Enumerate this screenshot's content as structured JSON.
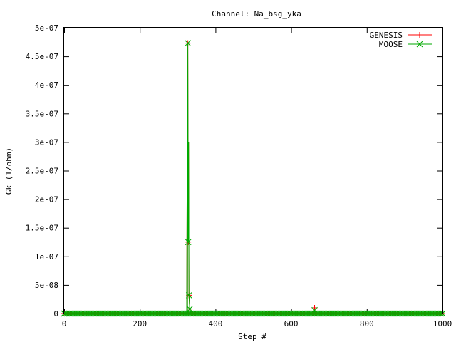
{
  "chart_data": {
    "type": "line",
    "title": "Channel: Na_bsg_yka",
    "xlabel": "Step #",
    "ylabel": "Gk (1/ohm)",
    "xlim": [
      0,
      1000
    ],
    "ylim": [
      0,
      5e-07
    ],
    "x_ticks": [
      0,
      200,
      400,
      600,
      800,
      1000
    ],
    "x_tick_labels": [
      "0",
      "200",
      "400",
      "600",
      "800",
      "1000"
    ],
    "y_ticks": [
      0,
      5e-08,
      1e-07,
      1.5e-07,
      2e-07,
      2.5e-07,
      3e-07,
      3.5e-07,
      4e-07,
      4.5e-07,
      5e-07
    ],
    "y_tick_labels": [
      "0",
      "5e-08",
      "1e-07",
      "1.5e-07",
      "2e-07",
      "2.5e-07",
      "3e-07",
      "3.5e-07",
      "4e-07",
      "4.5e-07",
      "5e-07"
    ],
    "grid": false,
    "legend_position": "top-right",
    "series": [
      {
        "name": "GENESIS",
        "color": "#ff0000",
        "marker": "plus",
        "points": [
          [
            0,
            0
          ],
          [
            300,
            0
          ],
          [
            324,
            0
          ],
          [
            325,
            2.35e-07
          ],
          [
            326,
            0
          ],
          [
            327,
            4.73e-07
          ],
          [
            328,
            1.25e-07
          ],
          [
            329,
            3e-07
          ],
          [
            330,
            3.2e-08
          ],
          [
            332,
            8e-09
          ],
          [
            334,
            0
          ],
          [
            400,
            0
          ],
          [
            660,
            0
          ],
          [
            662,
            1e-08
          ],
          [
            664,
            0
          ],
          [
            1000,
            0
          ]
        ],
        "marker_points": [
          [
            0,
            0
          ],
          [
            327,
            4.73e-07
          ],
          [
            328,
            1.25e-07
          ],
          [
            330,
            3.2e-08
          ],
          [
            332,
            8e-09
          ],
          [
            662,
            1e-08
          ],
          [
            1000,
            0
          ]
        ]
      },
      {
        "name": "MOOSE",
        "color": "#00aa00",
        "marker": "x",
        "points": [
          [
            0,
            0
          ],
          [
            300,
            0
          ],
          [
            324,
            0
          ],
          [
            325,
            2.35e-07
          ],
          [
            326,
            0
          ],
          [
            327,
            4.73e-07
          ],
          [
            328,
            1.25e-07
          ],
          [
            329,
            3e-07
          ],
          [
            330,
            3.2e-08
          ],
          [
            332,
            8e-09
          ],
          [
            334,
            0
          ],
          [
            400,
            0
          ],
          [
            660,
            0
          ],
          [
            662,
            6e-09
          ],
          [
            664,
            0
          ],
          [
            1000,
            0
          ]
        ],
        "marker_points": [
          [
            0,
            0
          ],
          [
            327,
            4.73e-07
          ],
          [
            328,
            1.25e-07
          ],
          [
            330,
            3.2e-08
          ],
          [
            332,
            8e-09
          ],
          [
            662,
            6e-09
          ],
          [
            1000,
            0
          ]
        ]
      }
    ]
  }
}
